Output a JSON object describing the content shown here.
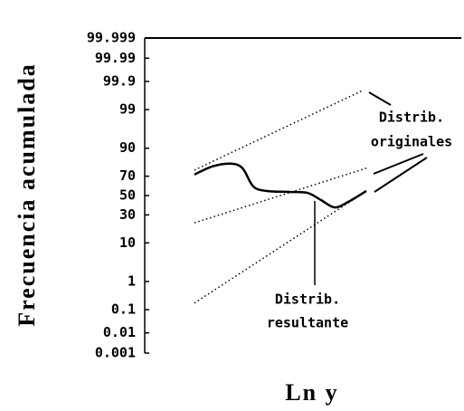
{
  "chart_data": {
    "type": "line",
    "yscale": "probit",
    "ylabel": "Frecuencia acumulada",
    "xlabel": "Ln y",
    "ylim": [
      0.001,
      99.999
    ],
    "yticks": [
      0.001,
      0.01,
      0.1,
      1,
      10,
      30,
      50,
      70,
      90,
      99,
      99.9,
      99.99,
      99.999
    ],
    "xlim": [
      0,
      100
    ],
    "series": [
      {
        "name": "Distrib. originales",
        "style": "dotted",
        "color": "#000",
        "x": [
          15.7,
          68.6
        ],
        "values": [
          75.5,
          99.77
        ]
      },
      {
        "name": "Distrib. originales",
        "style": "dotted",
        "color": "#000",
        "x": [
          15.7,
          70
        ],
        "values": [
          23,
          77
        ]
      },
      {
        "name": "Distrib. originales",
        "style": "dotted",
        "color": "#000",
        "x": [
          15.7,
          70
        ],
        "values": [
          0.18,
          54.8
        ]
      },
      {
        "name": "Distrib. resultante",
        "style": "solid",
        "color": "#000",
        "x": [
          15.7,
          21.4,
          27.1,
          30.9,
          34.3,
          38.6,
          45.7,
          51.4,
          55.7,
          60,
          64.3,
          70
        ],
        "values": [
          71.5,
          78.5,
          80.6,
          77,
          59.7,
          54.9,
          53.9,
          52.9,
          45.1,
          37.4,
          43.2,
          54.9
        ]
      }
    ],
    "annotations": [
      {
        "lines": [
          "Distrib.",
          "originales"
        ]
      },
      {
        "lines": [
          "Distrib.",
          "resultante"
        ]
      }
    ]
  }
}
